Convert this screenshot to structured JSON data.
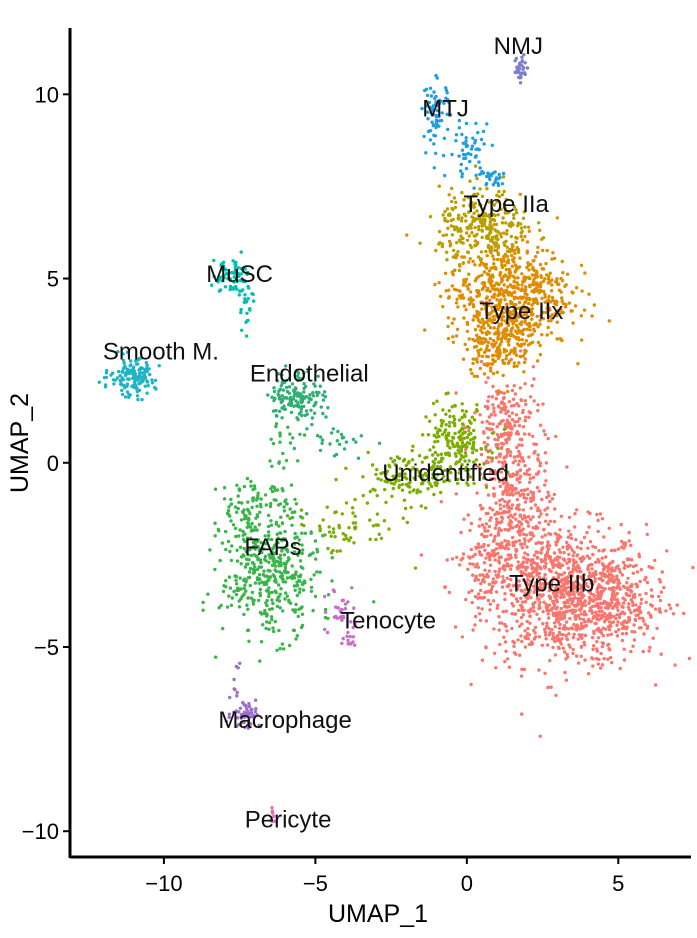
{
  "chart_data": {
    "type": "scatter",
    "xlabel": "UMAP_1",
    "ylabel": "UMAP_2",
    "xlim": [
      -13.1,
      7.4
    ],
    "ylim": [
      -10.7,
      11.8
    ],
    "xticks": [
      -10,
      -5,
      0,
      5
    ],
    "yticks": [
      10,
      5,
      0,
      -5,
      -10
    ],
    "grid": false,
    "legend": "none",
    "clusters": [
      {
        "name": "Type IIb",
        "color": "#F8766D",
        "label_at": [
          2.8,
          -3.5
        ]
      },
      {
        "name": "Type IIx",
        "color": "#DE8C00",
        "label_at": [
          1.8,
          3.9
        ]
      },
      {
        "name": "Type IIa",
        "color": "#B79F00",
        "label_at": [
          1.3,
          6.8
        ]
      },
      {
        "name": "Unidentified",
        "color": "#7CAE00",
        "label_at": [
          -0.7,
          -0.5
        ]
      },
      {
        "name": "FAPs",
        "color": "#39B54A",
        "label_at": [
          -6.4,
          -2.5
        ]
      },
      {
        "name": "Endothelial",
        "color": "#2EAF73",
        "label_at": [
          -5.2,
          2.2
        ]
      },
      {
        "name": "MuSC",
        "color": "#00BFAE",
        "label_at": [
          -7.5,
          4.9
        ]
      },
      {
        "name": "Smooth M.",
        "color": "#1EB4C6",
        "label_at": [
          -10.1,
          2.8
        ]
      },
      {
        "name": "MTJ",
        "color": "#1E9FE0",
        "label_at": [
          -0.7,
          9.4
        ]
      },
      {
        "name": "NMJ",
        "color": "#7B7FCF",
        "label_at": [
          1.7,
          11.1
        ]
      },
      {
        "name": "Macrophage",
        "color": "#9B6FC9",
        "label_at": [
          -6.0,
          -7.2
        ]
      },
      {
        "name": "Tenocyte",
        "color": "#C46EC7",
        "label_at": [
          -2.6,
          -4.5
        ]
      },
      {
        "name": "Pericyte",
        "color": "#F06AB3",
        "label_at": [
          -5.9,
          -9.9
        ]
      }
    ]
  }
}
